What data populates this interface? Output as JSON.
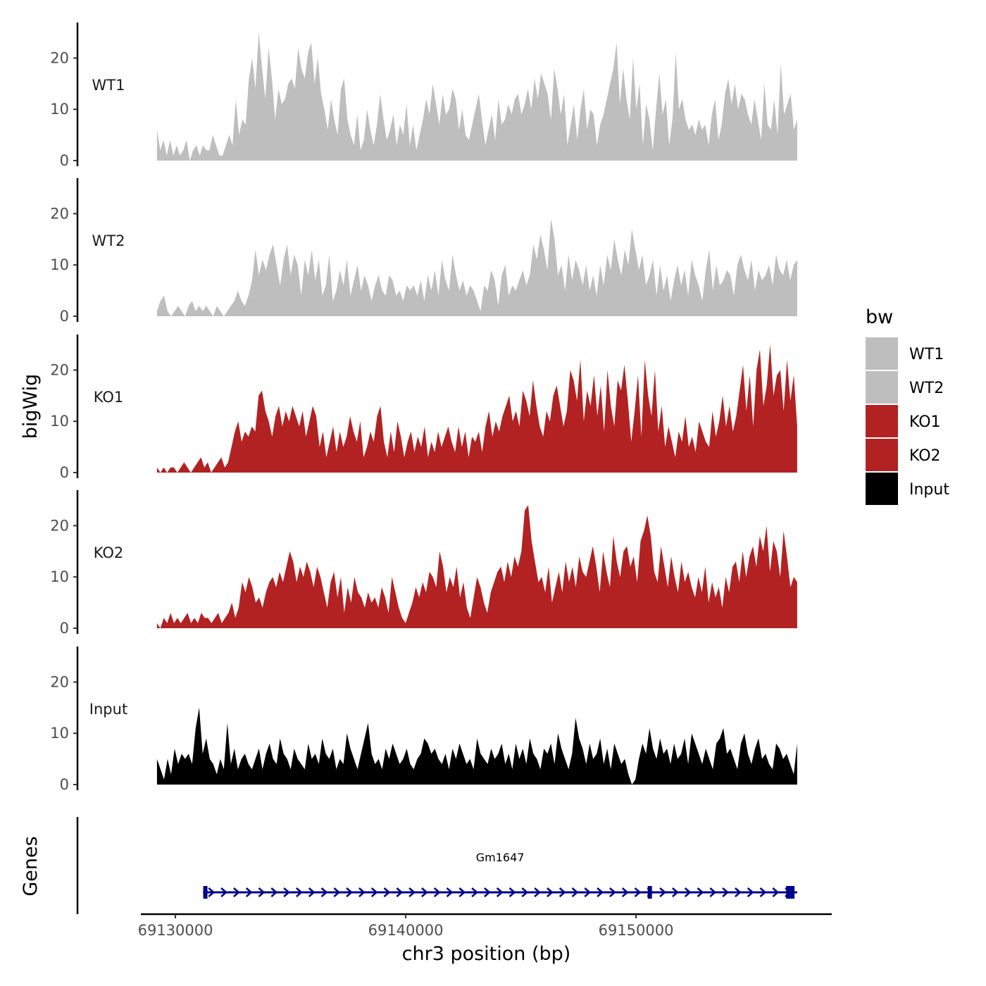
{
  "chart_data": {
    "type": "area",
    "ylabel": "bigWig",
    "xlabel": "chr3 position (bp)",
    "gene_track_label": "Genes",
    "x_range": [
      69128500,
      69158500
    ],
    "data_range": [
      69129200,
      69157000
    ],
    "x_ticks": [
      {
        "value": 69130000,
        "label": "69130000"
      },
      {
        "value": 69140000,
        "label": "69140000"
      },
      {
        "value": 69150000,
        "label": "69150000"
      }
    ],
    "ylim": [
      0,
      27
    ],
    "y_ticks": [
      {
        "value": 0,
        "label": "0"
      },
      {
        "value": 10,
        "label": "10"
      },
      {
        "value": 20,
        "label": "20"
      }
    ],
    "legend": {
      "title": "bw",
      "items": [
        {
          "label": "WT1",
          "color": "#bebebe"
        },
        {
          "label": "WT2",
          "color": "#bebebe"
        },
        {
          "label": "KO1",
          "color": "#b22222"
        },
        {
          "label": "KO2",
          "color": "#b22222"
        },
        {
          "label": "Input",
          "color": "#000000"
        }
      ]
    },
    "series": [
      {
        "name": "WT1",
        "color": "#bebebe",
        "values": [
          6,
          2,
          4,
          1,
          4,
          1,
          3,
          1,
          2,
          4,
          0,
          2,
          3,
          1,
          3,
          2,
          2,
          5,
          3,
          1,
          1,
          3,
          5,
          3,
          12,
          5,
          8,
          7,
          16,
          20,
          14,
          25,
          18,
          12,
          22,
          16,
          8,
          14,
          11,
          12,
          15,
          16,
          14,
          22,
          18,
          16,
          21,
          23,
          15,
          20,
          13,
          10,
          6,
          12,
          8,
          5,
          14,
          16,
          8,
          5,
          3,
          9,
          2,
          4,
          10,
          6,
          3,
          7,
          13,
          8,
          4,
          6,
          9,
          3,
          7,
          5,
          11,
          3,
          7,
          2,
          5,
          8,
          12,
          9,
          15,
          11,
          7,
          13,
          9,
          10,
          14,
          12,
          6,
          10,
          5,
          4,
          7,
          10,
          13,
          8,
          3,
          6,
          9,
          4,
          12,
          7,
          8,
          11,
          9,
          12,
          13,
          9,
          11,
          14,
          10,
          16,
          12,
          17,
          15,
          13,
          8,
          18,
          14,
          9,
          13,
          3,
          7,
          11,
          4,
          10,
          14,
          6,
          10,
          9,
          3,
          7,
          9,
          12,
          15,
          18,
          23,
          11,
          18,
          12,
          8,
          20,
          10,
          15,
          3,
          11,
          8,
          2,
          10,
          17,
          9,
          12,
          3,
          8,
          21,
          10,
          12,
          8,
          6,
          7,
          5,
          8,
          6,
          7,
          3,
          9,
          12,
          4,
          7,
          13,
          16,
          11,
          15,
          10,
          13,
          12,
          9,
          7,
          12,
          8,
          4,
          15,
          7,
          6,
          12,
          5,
          19,
          9,
          11,
          13,
          6,
          8
        ]
      },
      {
        "name": "WT2",
        "color": "#bebebe",
        "values": [
          1,
          3,
          4,
          1,
          0,
          1,
          2,
          1,
          0,
          2,
          3,
          1,
          2,
          1,
          2,
          1,
          0,
          2,
          1,
          0,
          1,
          2,
          3,
          5,
          3,
          2,
          4,
          7,
          13,
          8,
          11,
          9,
          12,
          14,
          10,
          6,
          11,
          14,
          8,
          12,
          10,
          4,
          11,
          8,
          13,
          7,
          11,
          4,
          6,
          12,
          3,
          5,
          9,
          6,
          11,
          4,
          7,
          10,
          5,
          8,
          6,
          3,
          6,
          8,
          5,
          4,
          8,
          7,
          4,
          5,
          3,
          6,
          5,
          6,
          4,
          7,
          3,
          8,
          5,
          9,
          4,
          11,
          7,
          5,
          12,
          8,
          5,
          7,
          4,
          6,
          5,
          3,
          1,
          6,
          5,
          9,
          7,
          2,
          8,
          10,
          4,
          6,
          5,
          7,
          9,
          6,
          8,
          14,
          11,
          16,
          13,
          9,
          19,
          15,
          8,
          10,
          5,
          12,
          7,
          11,
          9,
          6,
          10,
          5,
          8,
          4,
          10,
          6,
          12,
          9,
          15,
          11,
          8,
          13,
          10,
          17,
          13,
          9,
          12,
          6,
          8,
          11,
          4,
          10,
          5,
          8,
          3,
          7,
          10,
          6,
          9,
          4,
          11,
          8,
          6,
          3,
          9,
          13,
          5,
          10,
          6,
          7,
          9,
          8,
          4,
          10,
          12,
          9,
          7,
          11,
          5,
          9,
          7,
          8,
          10,
          6,
          12,
          9,
          8,
          11,
          7,
          10,
          11
        ]
      },
      {
        "name": "KO1",
        "color": "#b22222",
        "values": [
          1,
          0,
          1,
          0,
          1,
          1,
          0,
          1,
          2,
          1,
          0,
          1,
          2,
          3,
          1,
          2,
          0,
          1,
          2,
          3,
          1,
          2,
          5,
          8,
          10,
          6,
          8,
          7,
          9,
          8,
          15,
          16,
          12,
          10,
          7,
          11,
          13,
          9,
          12,
          10,
          13,
          11,
          9,
          12,
          7,
          10,
          13,
          11,
          5,
          8,
          3,
          6,
          9,
          4,
          8,
          5,
          7,
          11,
          8,
          6,
          10,
          3,
          5,
          8,
          6,
          11,
          13,
          6,
          3,
          8,
          4,
          10,
          7,
          3,
          6,
          8,
          4,
          7,
          5,
          9,
          3,
          6,
          4,
          8,
          5,
          7,
          9,
          6,
          4,
          9,
          5,
          8,
          3,
          7,
          6,
          8,
          4,
          9,
          12,
          7,
          10,
          8,
          11,
          13,
          15,
          10,
          12,
          9,
          16,
          14,
          11,
          18,
          13,
          9,
          7,
          12,
          10,
          15,
          17,
          13,
          9,
          12,
          20,
          18,
          14,
          22,
          10,
          16,
          13,
          19,
          11,
          17,
          8,
          20,
          13,
          9,
          18,
          16,
          21,
          14,
          6,
          12,
          19,
          7,
          22,
          15,
          11,
          20,
          8,
          13,
          5,
          9,
          6,
          3,
          8,
          6,
          11,
          5,
          7,
          4,
          10,
          8,
          6,
          5,
          12,
          7,
          10,
          15,
          9,
          13,
          8,
          11,
          16,
          21,
          12,
          19,
          9,
          20,
          24,
          13,
          17,
          25,
          15,
          19,
          20,
          12,
          22,
          14,
          19,
          9
        ]
      },
      {
        "name": "KO2",
        "color": "#b22222",
        "values": [
          1,
          0,
          2,
          1,
          3,
          1,
          2,
          1,
          2,
          3,
          1,
          2,
          1,
          3,
          2,
          2,
          1,
          2,
          3,
          1,
          2,
          3,
          5,
          2,
          4,
          9,
          7,
          10,
          8,
          5,
          6,
          4,
          7,
          9,
          10,
          8,
          11,
          9,
          12,
          15,
          13,
          9,
          12,
          10,
          13,
          11,
          8,
          12,
          10,
          7,
          4,
          9,
          11,
          6,
          10,
          3,
          8,
          5,
          10,
          7,
          6,
          4,
          7,
          5,
          6,
          4,
          8,
          6,
          3,
          10,
          7,
          4,
          2,
          1,
          3,
          5,
          8,
          6,
          9,
          7,
          11,
          10,
          8,
          15,
          12,
          7,
          10,
          8,
          12,
          6,
          9,
          4,
          2,
          6,
          10,
          8,
          5,
          3,
          7,
          9,
          11,
          12,
          9,
          13,
          10,
          14,
          12,
          15,
          23,
          24,
          17,
          13,
          9,
          10,
          7,
          12,
          5,
          8,
          11,
          7,
          13,
          9,
          12,
          8,
          14,
          11,
          10,
          13,
          16,
          12,
          7,
          15,
          11,
          8,
          18,
          13,
          10,
          15,
          16,
          12,
          14,
          9,
          17,
          19,
          22,
          18,
          11,
          9,
          16,
          12,
          8,
          14,
          10,
          7,
          13,
          9,
          11,
          8,
          6,
          10,
          7,
          12,
          5,
          9,
          6,
          8,
          4,
          10,
          7,
          12,
          13,
          9,
          15,
          10,
          14,
          16,
          12,
          18,
          15,
          20,
          11,
          17,
          15,
          10,
          19,
          14,
          8,
          10,
          9
        ]
      },
      {
        "name": "Input",
        "color": "#000000",
        "values": [
          5,
          3,
          1,
          5,
          2,
          7,
          4,
          6,
          5,
          6,
          4,
          11,
          15,
          6,
          9,
          5,
          4,
          2,
          5,
          3,
          12,
          4,
          7,
          3,
          5,
          6,
          4,
          3,
          5,
          7,
          3,
          6,
          8,
          5,
          4,
          9,
          6,
          5,
          3,
          7,
          5,
          4,
          3,
          8,
          5,
          6,
          4,
          9,
          6,
          5,
          7,
          3,
          5,
          4,
          10,
          7,
          5,
          3,
          6,
          9,
          12,
          6,
          4,
          5,
          3,
          7,
          5,
          8,
          6,
          4,
          5,
          7,
          4,
          3,
          5,
          6,
          9,
          8,
          6,
          7,
          5,
          4,
          6,
          3,
          7,
          5,
          8,
          6,
          4,
          5,
          3,
          9,
          6,
          5,
          4,
          7,
          5,
          6,
          8,
          4,
          6,
          3,
          8,
          5,
          7,
          4,
          9,
          6,
          5,
          3,
          7,
          6,
          8,
          4,
          10,
          7,
          5,
          3,
          6,
          13,
          9,
          7,
          4,
          8,
          5,
          6,
          9,
          4,
          7,
          3,
          8,
          6,
          4,
          5,
          2,
          0,
          1,
          5,
          8,
          6,
          11,
          7,
          5,
          9,
          6,
          7,
          4,
          8,
          5,
          6,
          9,
          4,
          10,
          8,
          6,
          4,
          7,
          5,
          3,
          8,
          9,
          11,
          6,
          7,
          5,
          3,
          8,
          10,
          6,
          4,
          7,
          9,
          5,
          6,
          4,
          3,
          8,
          7,
          5,
          6,
          4,
          2,
          8
        ]
      }
    ],
    "gene": {
      "name": "Gm1647",
      "start": 69131200,
      "end": 69157000,
      "strand": "+",
      "color": "#00008b",
      "exons": [
        69131300,
        69150600,
        69156700
      ]
    }
  }
}
